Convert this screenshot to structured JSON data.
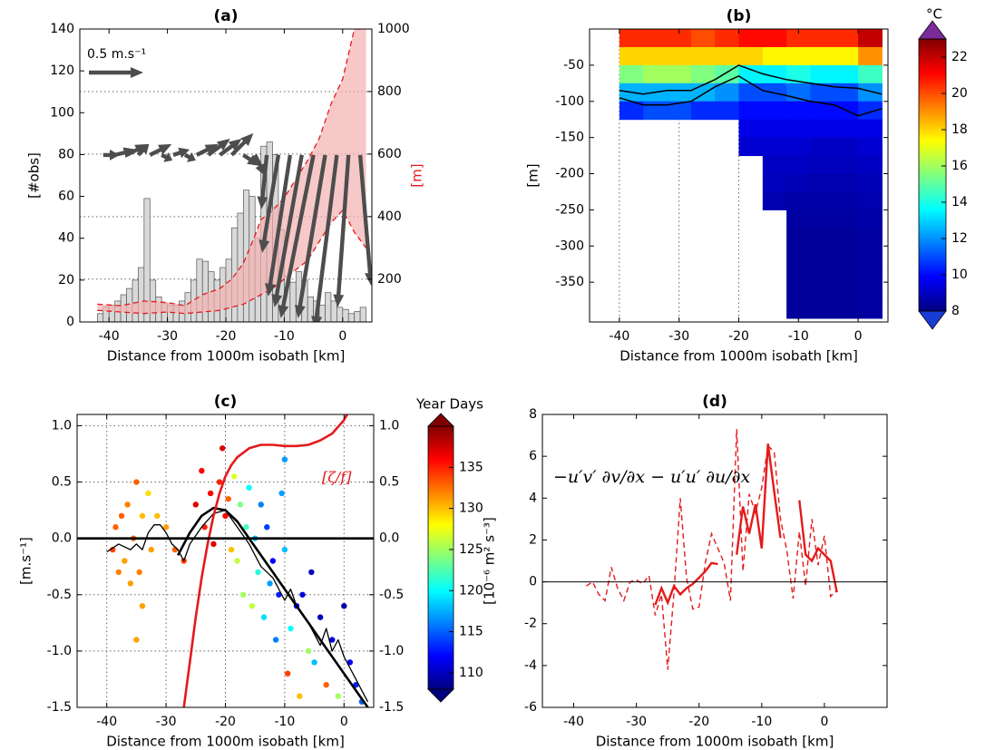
{
  "chart_data": [
    {
      "type": "histogram",
      "title": "(a)",
      "xlabel": "Distance from 1000m isobath [km]",
      "ylabel": "[#obs]",
      "y2label": "[m]",
      "xlim": [
        -45,
        5
      ],
      "ylim": [
        0,
        140
      ],
      "y2lim": [
        63,
        1000
      ],
      "xticks": [
        -40,
        -30,
        -20,
        -10,
        0
      ],
      "yticks": [
        0,
        20,
        40,
        60,
        80,
        100,
        120,
        140
      ],
      "y2ticks": [
        200,
        400,
        600,
        800,
        1000
      ],
      "grid": "y2",
      "y2_color": "#e41a1c",
      "bar_color": "#d9d9d9",
      "bins": [
        -42,
        -41,
        -40,
        -39,
        -38,
        -37,
        -36,
        -35,
        -34,
        -33,
        -32,
        -31,
        -30,
        -29,
        -28,
        -27,
        -26,
        -25,
        -24,
        -23,
        -22,
        -21,
        -20,
        -19,
        -18,
        -17,
        -16,
        -15,
        -14,
        -13,
        -12,
        -11,
        -10,
        -9,
        -8,
        -7,
        -6,
        -5,
        -4,
        -3,
        -2,
        -1,
        0,
        1,
        2,
        3,
        4
      ],
      "counts": [
        4,
        7,
        8,
        10,
        13,
        16,
        20,
        26,
        59,
        20,
        12,
        9,
        8,
        8,
        10,
        14,
        20,
        30,
        29,
        24,
        20,
        26,
        30,
        45,
        52,
        63,
        60,
        40,
        84,
        86,
        80,
        44,
        22,
        19,
        24,
        20,
        12,
        10,
        8,
        14,
        10,
        7,
        6,
        4,
        5,
        7
      ],
      "area": {
        "x": [
          -42,
          -38,
          -34,
          -30,
          -27,
          -24,
          -21,
          -19,
          -17,
          -15,
          -14,
          -12,
          -10,
          -8,
          -6,
          -4,
          -2,
          0,
          2,
          4
        ],
        "upper": [
          120,
          115,
          130,
          125,
          115,
          150,
          170,
          200,
          250,
          340,
          390,
          420,
          460,
          520,
          580,
          650,
          760,
          840,
          1000,
          1000
        ],
        "lower": [
          100,
          95,
          90,
          95,
          90,
          95,
          100,
          110,
          120,
          140,
          150,
          170,
          200,
          230,
          260,
          320,
          380,
          420,
          350,
          300
        ],
        "color": "#e41a1c",
        "fill": "#f4b0b0"
      },
      "arrows": {
        "x": [
          -41,
          -39,
          -37,
          -35,
          -33,
          -31,
          -29,
          -27,
          -25,
          -23,
          -21,
          -19,
          -17,
          -15,
          -13,
          -11,
          -9,
          -7,
          -5,
          -3,
          -1,
          1,
          3
        ],
        "u": [
          0.15,
          0.2,
          0.2,
          0.1,
          0.2,
          0.1,
          0.15,
          0.1,
          0.2,
          0.2,
          0.2,
          0.2,
          0.15,
          0.1,
          -0.05,
          -0.15,
          -0.2,
          -0.25,
          -0.3,
          -0.25,
          -0.2,
          -0.1,
          0.1
        ],
        "v": [
          0,
          0.05,
          0.1,
          0.1,
          0.1,
          -0.05,
          0.05,
          -0.05,
          0.1,
          0.15,
          0.15,
          0.2,
          -0.1,
          -0.2,
          -0.5,
          -0.9,
          -1.3,
          -1.4,
          -1.5,
          -1.5,
          -1.6,
          -1.4,
          -1.2
        ],
        "color": "#4d4d4d"
      },
      "arrow_scale": {
        "value": 0.5,
        "label": "0.5 m.s⁻¹"
      }
    },
    {
      "type": "heatmap",
      "title": "(b)",
      "xlabel": "Distance from 1000m isobath [km]",
      "ylabel": "[m]",
      "xlim": [
        -45,
        5
      ],
      "ylim": [
        -405,
        0
      ],
      "xticks": [
        -40,
        -30,
        -20,
        -10,
        0
      ],
      "yticks": [
        -350,
        -300,
        -250,
        -200,
        -150,
        -100,
        -50
      ],
      "grid": "x",
      "x_edges": [
        -40,
        -36,
        -32,
        -28,
        -24,
        -20,
        -16,
        -12,
        -8,
        -4,
        0,
        4
      ],
      "y_edges": [
        0,
        -25,
        -50,
        -75,
        -100,
        -125,
        -150,
        -175,
        -200,
        -225,
        -250,
        -275,
        -300,
        -325,
        -350,
        -375,
        -400
      ],
      "z": [
        [
          20.5,
          20.5,
          20.5,
          20,
          20.5,
          21,
          21,
          20.5,
          20.5,
          20.5,
          22
        ],
        [
          18,
          18,
          18,
          18,
          18,
          18,
          17.5,
          17.5,
          17.5,
          17.5,
          19
        ],
        [
          15.5,
          16,
          16,
          15.5,
          15,
          13.5,
          13.5,
          14,
          13.5,
          13.5,
          14.5
        ],
        [
          12.5,
          12.5,
          12.5,
          12.5,
          12,
          11,
          11,
          11.5,
          11,
          11,
          12
        ],
        [
          10.5,
          11,
          11,
          10.5,
          10.5,
          10,
          10,
          10,
          10,
          10,
          10.5
        ],
        [
          null,
          null,
          null,
          null,
          null,
          9.5,
          9.5,
          9.5,
          9.5,
          9.5,
          9.5
        ],
        [
          null,
          null,
          null,
          null,
          null,
          9.2,
          9.2,
          9.2,
          9,
          9,
          9.2
        ],
        [
          null,
          null,
          null,
          null,
          null,
          null,
          9,
          9,
          8.9,
          8.9,
          9
        ],
        [
          null,
          null,
          null,
          null,
          null,
          null,
          8.9,
          8.8,
          8.7,
          8.7,
          8.8
        ],
        [
          null,
          null,
          null,
          null,
          null,
          null,
          8.7,
          8.6,
          8.6,
          8.6,
          8.7
        ],
        [
          null,
          null,
          null,
          null,
          null,
          null,
          null,
          8.5,
          8.5,
          8.5,
          8.6
        ],
        [
          null,
          null,
          null,
          null,
          null,
          null,
          null,
          8.4,
          8.4,
          8.4,
          8.5
        ],
        [
          null,
          null,
          null,
          null,
          null,
          null,
          null,
          8.4,
          8.4,
          8.4,
          8.5
        ],
        [
          null,
          null,
          null,
          null,
          null,
          null,
          null,
          8.4,
          8.4,
          8.4,
          8.5
        ],
        [
          null,
          null,
          null,
          null,
          null,
          null,
          null,
          8.4,
          8.4,
          8.4,
          8.5
        ],
        [
          null,
          null,
          null,
          null,
          null,
          null,
          null,
          8.4,
          8.4,
          8.4,
          8.5
        ]
      ],
      "contours": [
        {
          "x": [
            -40,
            -36,
            -32,
            -28,
            -24,
            -20,
            -16,
            -12,
            -8,
            -4,
            0,
            4
          ],
          "y": [
            -85,
            -90,
            -85,
            -85,
            -70,
            -50,
            -62,
            -70,
            -75,
            -80,
            -82,
            -90
          ],
          "color": "#000000"
        },
        {
          "x": [
            -40,
            -36,
            -32,
            -28,
            -24,
            -20,
            -16,
            -12,
            -8,
            -4,
            0,
            4
          ],
          "y": [
            -95,
            -105,
            -105,
            -100,
            -80,
            -65,
            -85,
            -92,
            -100,
            -105,
            -120,
            -110
          ],
          "color": "#000000"
        }
      ],
      "colorbar": {
        "label": "°C",
        "lim": [
          8,
          23
        ],
        "ticks": [
          8,
          10,
          12,
          14,
          16,
          18,
          20,
          22
        ],
        "colormap": "jet",
        "over": "#7b2a9a",
        "under": "#1a3cd6"
      }
    },
    {
      "type": "scatter",
      "title": "(c)",
      "xlabel": "Distance from 1000m isobath [km]",
      "ylabel": "[m.s⁻¹]",
      "annotation": "[ζ/f]",
      "xlim": [
        -45,
        5
      ],
      "ylim": [
        -1.5,
        1.1
      ],
      "y2lim": [
        -1.5,
        1.1
      ],
      "xticks": [
        -40,
        -30,
        -20,
        -10,
        0
      ],
      "yticks": [
        -1.5,
        {
          "value": -1,
          "label": "-1.0"
        },
        -0.5,
        {
          "value": 0,
          "label": "0.0"
        },
        0.5,
        {
          "value": 1,
          "label": "1.0"
        }
      ],
      "y2ticks": [
        -1.5,
        {
          "value": -1,
          "label": "-1.0"
        },
        -0.5,
        {
          "value": 0,
          "label": "0.0"
        },
        0.5,
        {
          "value": 1,
          "label": "1.0"
        }
      ],
      "grid": "both",
      "y2_color": "#e41a1c",
      "hline": 0,
      "x": [
        -39,
        -38.5,
        -38,
        -37.5,
        -37,
        -36.5,
        -36,
        -35.5,
        -35,
        -35,
        -34.5,
        -34,
        -34,
        -33,
        -32.5,
        -31.5,
        -30,
        -28.5,
        -27,
        -25,
        -24,
        -23.5,
        -22.5,
        -22,
        -21,
        -20.5,
        -20,
        -19.5,
        -19,
        -18.5,
        -18,
        -17.5,
        -17,
        -16.5,
        -16,
        -15.5,
        -15,
        -14.5,
        -14,
        -13.5,
        -13,
        -12.5,
        -12,
        -11.5,
        -11,
        -10.5,
        -10,
        -10,
        -9.5,
        -9,
        -8,
        -7.5,
        -7,
        -6,
        -5.5,
        -5,
        -4,
        -3,
        -2,
        -1,
        0,
        1,
        2,
        3
      ],
      "y": [
        -0.1,
        0.1,
        -0.3,
        0.2,
        -0.2,
        0.3,
        -0.4,
        0,
        0.5,
        -0.9,
        -0.3,
        0.2,
        -0.6,
        0.4,
        -0.1,
        0.2,
        0.1,
        -0.1,
        -0.2,
        0.3,
        0.6,
        0.1,
        0.4,
        -0.05,
        0.5,
        0.8,
        0.2,
        0.35,
        -0.1,
        0.55,
        -0.2,
        0.3,
        -0.5,
        0.1,
        0.45,
        -0.6,
        0,
        -0.3,
        0.3,
        -0.7,
        0.1,
        -0.4,
        -0.2,
        -0.9,
        -0.5,
        0.4,
        -0.1,
        0.7,
        -1.2,
        -0.8,
        -0.6,
        -1.4,
        -0.5,
        -1,
        -0.3,
        -1.1,
        -0.7,
        -1.3,
        -0.9,
        -1.4,
        -0.6,
        -1.1,
        -1.3,
        -1.45
      ],
      "c": [
        134,
        133,
        132,
        133,
        131,
        132,
        131,
        133,
        133,
        131,
        132,
        130,
        131,
        129,
        131,
        130,
        131,
        133,
        134,
        137,
        136,
        135,
        136,
        137,
        135,
        137,
        136,
        133,
        130,
        127,
        126,
        124,
        125,
        122,
        120,
        126,
        118,
        121,
        116,
        119,
        114,
        117,
        112,
        116,
        113,
        117,
        118,
        117,
        134,
        120,
        112,
        130,
        111,
        125,
        110,
        118,
        110,
        133,
        111,
        125,
        109,
        112,
        113,
        115
      ],
      "lines": [
        {
          "x": [
            -40,
            -38,
            -36,
            -35,
            -34,
            -33,
            -32,
            -31,
            -30,
            -29,
            -28,
            -27,
            -26,
            -24,
            -22,
            -20,
            -18,
            -16,
            -14,
            -12,
            -10,
            -9,
            -8,
            -6,
            -4,
            -3,
            -2,
            -1,
            0,
            1,
            2,
            3,
            4
          ],
          "y": [
            -0.12,
            -0.05,
            -0.1,
            -0.05,
            -0.1,
            0.05,
            0.12,
            0.12,
            0.05,
            -0.05,
            -0.1,
            -0.2,
            -0.05,
            0.1,
            0.22,
            0.25,
            0.1,
            -0.05,
            -0.25,
            -0.35,
            -0.55,
            -0.45,
            -0.6,
            -0.75,
            -0.95,
            -0.8,
            -1,
            -0.9,
            -1.05,
            -1.15,
            -1.25,
            -1.35,
            -1.45
          ],
          "color": "#000000",
          "width": 1.3
        },
        {
          "x": [
            -28,
            -26,
            -24,
            -22,
            -20,
            -18,
            -16,
            -14,
            -12,
            -10,
            -8,
            -6,
            -4,
            -2,
            0,
            2,
            4
          ],
          "y": [
            -0.15,
            0.05,
            0.2,
            0.27,
            0.25,
            0.15,
            0,
            -0.15,
            -0.3,
            -0.45,
            -0.6,
            -0.75,
            -0.9,
            -1.05,
            -1.2,
            -1.35,
            -1.5
          ],
          "color": "#000000",
          "width": 2.6
        },
        {
          "x": [
            -27,
            -26,
            -25,
            -24,
            -23,
            -22,
            -21,
            -20,
            -19,
            -18,
            -16,
            -14,
            -12,
            -10,
            -8,
            -6,
            -4,
            -2,
            0,
            0.5
          ],
          "y": [
            -1.5,
            -1.1,
            -0.7,
            -0.35,
            -0.05,
            0.2,
            0.4,
            0.55,
            0.65,
            0.72,
            0.8,
            0.83,
            0.83,
            0.82,
            0.82,
            0.83,
            0.87,
            0.93,
            1.05,
            1.1
          ],
          "color": "#e41a1c",
          "width": 2.6,
          "axis": "y2"
        }
      ],
      "colorbar": {
        "label": "Year Days",
        "lim": [
          108,
          140
        ],
        "ticks": [
          110,
          115,
          120,
          125,
          130,
          135
        ],
        "colormap": "jet",
        "over": "#800000",
        "under": "#00007f"
      }
    },
    {
      "type": "line",
      "title": "(d)",
      "xlabel": "Distance from 1000m isobath [km]",
      "ylabel": "[10⁻⁶ m² s⁻³]",
      "annotation": "−u′v′ ∂v/∂x − u′u′ ∂u/∂x",
      "xlim": [
        -45,
        10
      ],
      "ylim": [
        -6,
        8
      ],
      "xticks": [
        -40,
        -30,
        -20,
        -10,
        0
      ],
      "yticks": [
        -6,
        -4,
        -2,
        0,
        2,
        4,
        6,
        8
      ],
      "hline": 0,
      "x": [
        -38,
        -37,
        -36,
        -35,
        -34,
        -33,
        -32,
        -31,
        -30,
        -29,
        -28,
        -27,
        -26,
        -25,
        -24,
        -23,
        -22,
        -21,
        -20,
        -19,
        -18,
        -17,
        -16,
        -15,
        -14,
        -13,
        -12,
        -11,
        -10,
        -9,
        -8,
        -7,
        -6,
        -5,
        -4,
        -3,
        -2,
        -1,
        0,
        1,
        2
      ],
      "series": [
        {
          "color": "#e41a1c",
          "dash": true,
          "values": [
            -0.2,
            0,
            -0.6,
            -0.9,
            0.7,
            -0.3,
            -0.9,
            0,
            0.1,
            -0.1,
            0.3,
            -1.6,
            -0.6,
            -4.2,
            -0.5,
            4,
            0.2,
            -1.3,
            -1.2,
            0.9,
            2.3,
            1.6,
            0.9,
            -0.9,
            7.3,
            0.5,
            4.2,
            3.3,
            4.5,
            6.5,
            6.2,
            3,
            1.5,
            -0.8,
            2.4,
            -0.2,
            3,
            0.8,
            2.2,
            -0.7,
            -0.4
          ]
        },
        {
          "color": "#e41a1c",
          "values": [
            null,
            null,
            null,
            null,
            null,
            null,
            null,
            null,
            null,
            null,
            null,
            -1.1,
            -0.3,
            -1,
            -0.2,
            -0.6,
            -0.3,
            -0.1,
            0.2,
            0.5,
            0.9,
            0.85,
            null,
            null,
            1.3,
            3.6,
            2.3,
            3.7,
            1.6,
            6.6,
            4.3,
            2.1,
            null,
            null,
            3.9,
            1.3,
            1,
            1.6,
            1.3,
            1,
            -0.5
          ]
        }
      ]
    }
  ]
}
